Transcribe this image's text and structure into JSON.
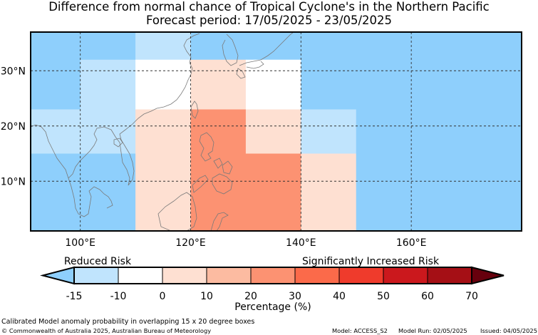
{
  "title_line1": "Difference from normal chance of Tropical Cyclone's in the Northern Pacific",
  "title_line2": "Forecast period: 17/05/2025 - 23/05/2025",
  "map": {
    "lon_range": [
      91,
      180
    ],
    "lat_range": [
      1,
      37
    ],
    "lon_ticks": [
      {
        "value": 100,
        "label": "100°E"
      },
      {
        "value": 120,
        "label": "120°E"
      },
      {
        "value": 140,
        "label": "140°E"
      },
      {
        "value": 160,
        "label": "160°E"
      }
    ],
    "lat_ticks": [
      {
        "value": 30,
        "label": "30°N"
      },
      {
        "value": 20,
        "label": "20°N"
      },
      {
        "value": 10,
        "label": "10°N"
      }
    ],
    "cells": [
      {
        "lon": [
          91,
          110
        ],
        "lat": [
          32,
          37
        ],
        "bin": 0
      },
      {
        "lon": [
          110,
          120
        ],
        "lat": [
          32,
          37
        ],
        "bin": 1
      },
      {
        "lon": [
          120,
          180
        ],
        "lat": [
          32,
          37
        ],
        "bin": 0
      },
      {
        "lon": [
          91,
          100
        ],
        "lat": [
          23,
          32
        ],
        "bin": 0
      },
      {
        "lon": [
          100,
          110
        ],
        "lat": [
          23,
          32
        ],
        "bin": 1
      },
      {
        "lon": [
          110,
          120
        ],
        "lat": [
          23,
          32
        ],
        "bin": 2
      },
      {
        "lon": [
          120,
          130
        ],
        "lat": [
          23,
          32
        ],
        "bin": 3
      },
      {
        "lon": [
          130,
          140
        ],
        "lat": [
          23,
          32
        ],
        "bin": 2
      },
      {
        "lon": [
          140,
          180
        ],
        "lat": [
          23,
          32
        ],
        "bin": 0
      },
      {
        "lon": [
          91,
          110
        ],
        "lat": [
          15,
          23
        ],
        "bin": 1
      },
      {
        "lon": [
          110,
          120
        ],
        "lat": [
          15,
          23
        ],
        "bin": 3
      },
      {
        "lon": [
          120,
          130
        ],
        "lat": [
          15,
          23
        ],
        "bin": 5
      },
      {
        "lon": [
          130,
          140
        ],
        "lat": [
          15,
          23
        ],
        "bin": 3
      },
      {
        "lon": [
          140,
          150
        ],
        "lat": [
          15,
          23
        ],
        "bin": 1
      },
      {
        "lon": [
          150,
          180
        ],
        "lat": [
          15,
          23
        ],
        "bin": 0
      },
      {
        "lon": [
          91,
          110
        ],
        "lat": [
          1,
          15
        ],
        "bin": 0
      },
      {
        "lon": [
          110,
          120
        ],
        "lat": [
          1,
          15
        ],
        "bin": 3
      },
      {
        "lon": [
          120,
          140
        ],
        "lat": [
          1,
          15
        ],
        "bin": 5
      },
      {
        "lon": [
          140,
          150
        ],
        "lat": [
          1,
          15
        ],
        "bin": 3
      },
      {
        "lon": [
          150,
          180
        ],
        "lat": [
          1,
          15
        ],
        "bin": 0
      }
    ]
  },
  "legend": {
    "reduced_label": "Reduced Risk",
    "increased_label": "Significantly Increased Risk",
    "units_label": "Percentage (%)",
    "ticks": [
      "-15",
      "-10",
      "0",
      "10",
      "20",
      "30",
      "40",
      "50",
      "60",
      "70"
    ],
    "colors": [
      "#8ecffc",
      "#c0e4fd",
      "#ffffff",
      "#fee0d2",
      "#fcbba1",
      "#fc9272",
      "#fb6a4a",
      "#ef3b2c",
      "#cb181d",
      "#a50f15",
      "#67000d"
    ]
  },
  "footer": {
    "caption": "Calibrated Model anomaly probability in overlapping 15 x 20 degree boxes",
    "copyright": "© Commonwealth of Australia 2025, Australian Bureau of Meteorology",
    "model": "Model: ACCESS_S2",
    "model_run": "Model Run: 02/05/2025",
    "issued": "Issued: 04/05/2025"
  }
}
